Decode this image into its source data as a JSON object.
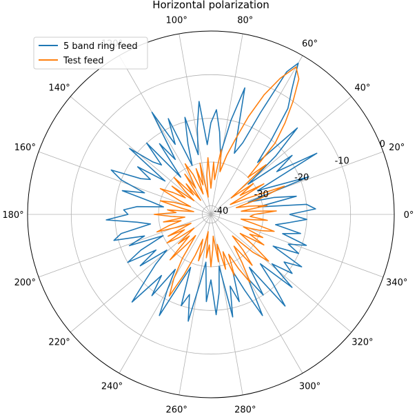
{
  "chart_data": {
    "type": "line",
    "projection": "polar",
    "title": "Horizontal polarization",
    "theta_ticks": [
      "0°",
      "20°",
      "40°",
      "60°",
      "80°",
      "100°",
      "120°",
      "140°",
      "160°",
      "180°",
      "200°",
      "220°",
      "240°",
      "260°",
      "280°",
      "300°",
      "320°",
      "340°"
    ],
    "theta_tick_values": [
      0,
      20,
      40,
      60,
      80,
      100,
      120,
      140,
      160,
      180,
      200,
      220,
      240,
      260,
      280,
      300,
      320,
      340
    ],
    "r_ticks": [
      "-40",
      "-30",
      "-20",
      "-10",
      "0"
    ],
    "r_tick_values": [
      -40,
      -30,
      -20,
      -10,
      0
    ],
    "rlim": [
      -42,
      0
    ],
    "grid": true,
    "legend_position": "upper-left",
    "series": [
      {
        "name": "5 band ring feed",
        "color": "#1f77b4",
        "points": [
          [
            0,
            -24
          ],
          [
            3,
            -18
          ],
          [
            6,
            -20
          ],
          [
            9,
            -31
          ],
          [
            12,
            -22
          ],
          [
            15,
            -27
          ],
          [
            18,
            -33
          ],
          [
            21,
            -18
          ],
          [
            24,
            -26
          ],
          [
            27,
            -30
          ],
          [
            30,
            -14
          ],
          [
            33,
            -24
          ],
          [
            36,
            -19
          ],
          [
            39,
            -31
          ],
          [
            42,
            -22
          ],
          [
            45,
            -14
          ],
          [
            48,
            -26
          ],
          [
            51,
            -20
          ],
          [
            54,
            -12
          ],
          [
            57,
            -8
          ],
          [
            60,
            -2
          ],
          [
            62,
            -5
          ],
          [
            64,
            -16
          ],
          [
            66,
            -24
          ],
          [
            69,
            -27
          ],
          [
            72,
            -22
          ],
          [
            75,
            -12
          ],
          [
            78,
            -20
          ],
          [
            81,
            -28
          ],
          [
            84,
            -23
          ],
          [
            87,
            -18
          ],
          [
            90,
            -21
          ],
          [
            93,
            -26
          ],
          [
            96,
            -16
          ],
          [
            99,
            -22
          ],
          [
            102,
            -28
          ],
          [
            105,
            -19
          ],
          [
            108,
            -25
          ],
          [
            111,
            -30
          ],
          [
            114,
            -18
          ],
          [
            117,
            -24
          ],
          [
            120,
            -15
          ],
          [
            123,
            -27
          ],
          [
            126,
            -22
          ],
          [
            129,
            -31
          ],
          [
            132,
            -20
          ],
          [
            135,
            -26
          ],
          [
            138,
            -24
          ],
          [
            141,
            -18
          ],
          [
            144,
            -29
          ],
          [
            147,
            -22
          ],
          [
            150,
            -26
          ],
          [
            153,
            -24
          ],
          [
            156,
            -17
          ],
          [
            159,
            -20
          ],
          [
            162,
            -26
          ],
          [
            165,
            -21
          ],
          [
            168,
            -28
          ],
          [
            171,
            -31
          ],
          [
            174,
            -25
          ],
          [
            177,
            -22
          ],
          [
            180,
            -23
          ],
          [
            183,
            -18
          ],
          [
            186,
            -25
          ],
          [
            189,
            -28
          ],
          [
            192,
            -21
          ],
          [
            195,
            -19
          ],
          [
            198,
            -26
          ],
          [
            201,
            -22
          ],
          [
            204,
            -30
          ],
          [
            207,
            -24
          ],
          [
            210,
            -20
          ],
          [
            213,
            -27
          ],
          [
            216,
            -22
          ],
          [
            219,
            -29
          ],
          [
            222,
            -25
          ],
          [
            225,
            -21
          ],
          [
            228,
            -15
          ],
          [
            231,
            -24
          ],
          [
            234,
            -19
          ],
          [
            237,
            -27
          ],
          [
            240,
            -22
          ],
          [
            243,
            -16
          ],
          [
            246,
            -25
          ],
          [
            249,
            -29
          ],
          [
            252,
            -20
          ],
          [
            255,
            -23
          ],
          [
            258,
            -17
          ],
          [
            261,
            -26
          ],
          [
            264,
            -31
          ],
          [
            267,
            -22
          ],
          [
            270,
            -27
          ],
          [
            273,
            -19
          ],
          [
            276,
            -24
          ],
          [
            279,
            -30
          ],
          [
            282,
            -18
          ],
          [
            285,
            -25
          ],
          [
            288,
            -21
          ],
          [
            291,
            -28
          ],
          [
            294,
            -23
          ],
          [
            297,
            -16
          ],
          [
            300,
            -25
          ],
          [
            303,
            -20
          ],
          [
            306,
            -27
          ],
          [
            309,
            -15
          ],
          [
            312,
            -21
          ],
          [
            315,
            -26
          ],
          [
            318,
            -17
          ],
          [
            321,
            -24
          ],
          [
            324,
            -19
          ],
          [
            327,
            -22
          ],
          [
            330,
            -18
          ],
          [
            333,
            -26
          ],
          [
            336,
            -20
          ],
          [
            339,
            -23
          ],
          [
            342,
            -19
          ],
          [
            345,
            -25
          ],
          [
            348,
            -21
          ],
          [
            351,
            -27
          ],
          [
            354,
            -24
          ],
          [
            357,
            -20
          ],
          [
            360,
            -24
          ]
        ]
      },
      {
        "name": "Test feed",
        "color": "#ff7f0e",
        "points": [
          [
            0,
            -32
          ],
          [
            3,
            -27
          ],
          [
            6,
            -35
          ],
          [
            9,
            -29
          ],
          [
            12,
            -33
          ],
          [
            15,
            -36
          ],
          [
            18,
            -30
          ],
          [
            21,
            -24
          ],
          [
            24,
            -33
          ],
          [
            27,
            -37
          ],
          [
            30,
            -28
          ],
          [
            33,
            -34
          ],
          [
            36,
            -30
          ],
          [
            39,
            -36
          ],
          [
            42,
            -25
          ],
          [
            45,
            -30
          ],
          [
            48,
            -20
          ],
          [
            51,
            -15
          ],
          [
            54,
            -10
          ],
          [
            57,
            -5
          ],
          [
            60,
            -3
          ],
          [
            63,
            -7
          ],
          [
            66,
            -12
          ],
          [
            69,
            -18
          ],
          [
            72,
            -24
          ],
          [
            75,
            -28
          ],
          [
            78,
            -32
          ],
          [
            81,
            -27
          ],
          [
            84,
            -34
          ],
          [
            87,
            -30
          ],
          [
            90,
            -36
          ],
          [
            93,
            -29
          ],
          [
            96,
            -33
          ],
          [
            99,
            -38
          ],
          [
            102,
            -30
          ],
          [
            105,
            -35
          ],
          [
            108,
            -31
          ],
          [
            111,
            -37
          ],
          [
            114,
            -32
          ],
          [
            117,
            -29
          ],
          [
            120,
            -35
          ],
          [
            123,
            -31
          ],
          [
            126,
            -38
          ],
          [
            129,
            -33
          ],
          [
            132,
            -36
          ],
          [
            135,
            -30
          ],
          [
            138,
            -34
          ],
          [
            141,
            -37
          ],
          [
            144,
            -31
          ],
          [
            147,
            -35
          ],
          [
            150,
            -32
          ],
          [
            153,
            -29
          ],
          [
            156,
            -34
          ],
          [
            159,
            -37
          ],
          [
            162,
            -33
          ],
          [
            165,
            -30
          ],
          [
            168,
            -35
          ],
          [
            171,
            -38
          ],
          [
            174,
            -32
          ],
          [
            177,
            -34
          ],
          [
            180,
            -29
          ],
          [
            183,
            -33
          ],
          [
            186,
            -36
          ],
          [
            189,
            -31
          ],
          [
            192,
            -35
          ],
          [
            195,
            -32
          ],
          [
            198,
            -29
          ],
          [
            201,
            -34
          ],
          [
            204,
            -37
          ],
          [
            207,
            -31
          ],
          [
            210,
            -35
          ],
          [
            213,
            -30
          ],
          [
            216,
            -33
          ],
          [
            219,
            -37
          ],
          [
            222,
            -32
          ],
          [
            225,
            -35
          ],
          [
            228,
            -28
          ],
          [
            231,
            -33
          ],
          [
            234,
            -36
          ],
          [
            237,
            -30
          ],
          [
            240,
            -25
          ],
          [
            243,
            -21
          ],
          [
            246,
            -27
          ],
          [
            249,
            -32
          ],
          [
            252,
            -36
          ],
          [
            255,
            -31
          ],
          [
            258,
            -34
          ],
          [
            261,
            -38
          ],
          [
            264,
            -32
          ],
          [
            267,
            -35
          ],
          [
            270,
            -30
          ],
          [
            273,
            -34
          ],
          [
            276,
            -37
          ],
          [
            279,
            -31
          ],
          [
            282,
            -35
          ],
          [
            285,
            -29
          ],
          [
            288,
            -33
          ],
          [
            291,
            -27
          ],
          [
            294,
            -32
          ],
          [
            297,
            -28
          ],
          [
            300,
            -24
          ],
          [
            303,
            -29
          ],
          [
            306,
            -33
          ],
          [
            309,
            -27
          ],
          [
            312,
            -31
          ],
          [
            315,
            -35
          ],
          [
            318,
            -29
          ],
          [
            321,
            -25
          ],
          [
            324,
            -30
          ],
          [
            327,
            -34
          ],
          [
            330,
            -28
          ],
          [
            333,
            -32
          ],
          [
            336,
            -29
          ],
          [
            339,
            -34
          ],
          [
            342,
            -30
          ],
          [
            345,
            -27
          ],
          [
            348,
            -32
          ],
          [
            351,
            -35
          ],
          [
            354,
            -29
          ],
          [
            357,
            -33
          ],
          [
            360,
            -32
          ]
        ]
      }
    ]
  }
}
